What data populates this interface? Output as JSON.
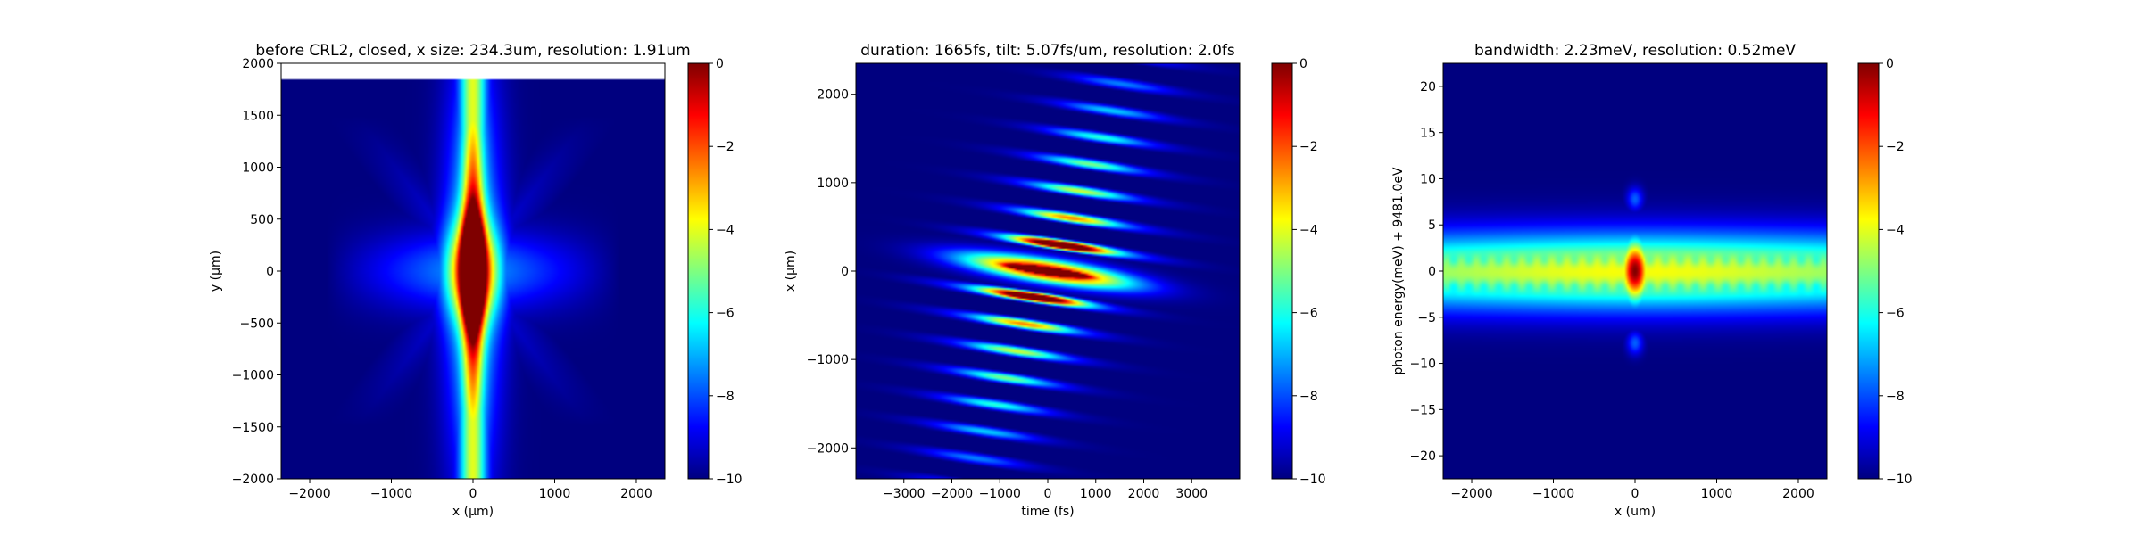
{
  "colormap": [
    "#00007f",
    "#0000ff",
    "#007fff",
    "#00ffff",
    "#7fff7f",
    "#ffff00",
    "#ff7f00",
    "#ff0000",
    "#7f0000"
  ],
  "chart_data": [
    {
      "type": "heatmap",
      "title": "before CRL2, closed, x size: 234.3um, resolution: 1.91um",
      "xlabel": "x (μm)",
      "ylabel": "y (μm)",
      "xlim": [
        -2350,
        2350
      ],
      "ylim": [
        -2000,
        2000
      ],
      "xticks": [
        -2000,
        -1000,
        0,
        1000,
        2000
      ],
      "xtick_labels": [
        "−2000",
        "−1000",
        "0",
        "1000",
        "2000"
      ],
      "yticks": [
        -2000,
        -1500,
        -1000,
        -500,
        0,
        500,
        1000,
        1500,
        2000
      ],
      "ytick_labels": [
        "−2000",
        "−1500",
        "−1000",
        "−500",
        "0",
        "500",
        "1000",
        "1500",
        "2000"
      ],
      "data_extent_y": [
        -2000,
        1850
      ],
      "pattern": "cross",
      "colorbar": {
        "range": [
          -10,
          0
        ],
        "ticks": [
          0,
          -2,
          -4,
          -6,
          -8,
          -10
        ],
        "tick_labels": [
          "0",
          "−2",
          "−4",
          "−6",
          "−8",
          "−10"
        ]
      }
    },
    {
      "type": "heatmap",
      "title": "duration: 1665fs, tilt: 5.07fs/um, resolution: 2.0fs",
      "xlabel": "time (fs)",
      "ylabel": "x (μm)",
      "xlim": [
        -4000,
        4000
      ],
      "ylim": [
        -2350,
        2350
      ],
      "xticks": [
        -3000,
        -2000,
        -1000,
        0,
        1000,
        2000,
        3000
      ],
      "xtick_labels": [
        "−3000",
        "−2000",
        "−1000",
        "0",
        "1000",
        "2000",
        "3000"
      ],
      "yticks": [
        -2000,
        -1000,
        0,
        1000,
        2000
      ],
      "ytick_labels": [
        "−2000",
        "−1000",
        "0",
        "1000",
        "2000"
      ],
      "tilt_fs_per_um": 5.07,
      "pattern": "tilted-fringes",
      "colorbar": {
        "range": [
          -10,
          0
        ],
        "ticks": [
          0,
          -2,
          -4,
          -6,
          -8,
          -10
        ],
        "tick_labels": [
          "0",
          "−2",
          "−4",
          "−6",
          "−8",
          "−10"
        ]
      }
    },
    {
      "type": "heatmap",
      "title": "bandwidth: 2.23meV, resolution: 0.52meV",
      "xlabel": "x (um)",
      "ylabel": "photon energy(meV) + 9481.0eV",
      "xlim": [
        -2350,
        2350
      ],
      "ylim": [
        -22.5,
        22.5
      ],
      "xticks": [
        -2000,
        -1000,
        0,
        1000,
        2000
      ],
      "xtick_labels": [
        "−2000",
        "−1000",
        "0",
        "1000",
        "2000"
      ],
      "yticks": [
        -20,
        -15,
        -10,
        -5,
        0,
        5,
        10,
        15,
        20
      ],
      "ytick_labels": [
        "−20",
        "−15",
        "−10",
        "−5",
        "0",
        "5",
        "10",
        "15",
        "20"
      ],
      "pattern": "horizontal-band",
      "colorbar": {
        "range": [
          -10,
          0
        ],
        "ticks": [
          0,
          -2,
          -4,
          -6,
          -8,
          -10
        ],
        "tick_labels": [
          "0",
          "−2",
          "−4",
          "−6",
          "−8",
          "−10"
        ]
      }
    }
  ]
}
